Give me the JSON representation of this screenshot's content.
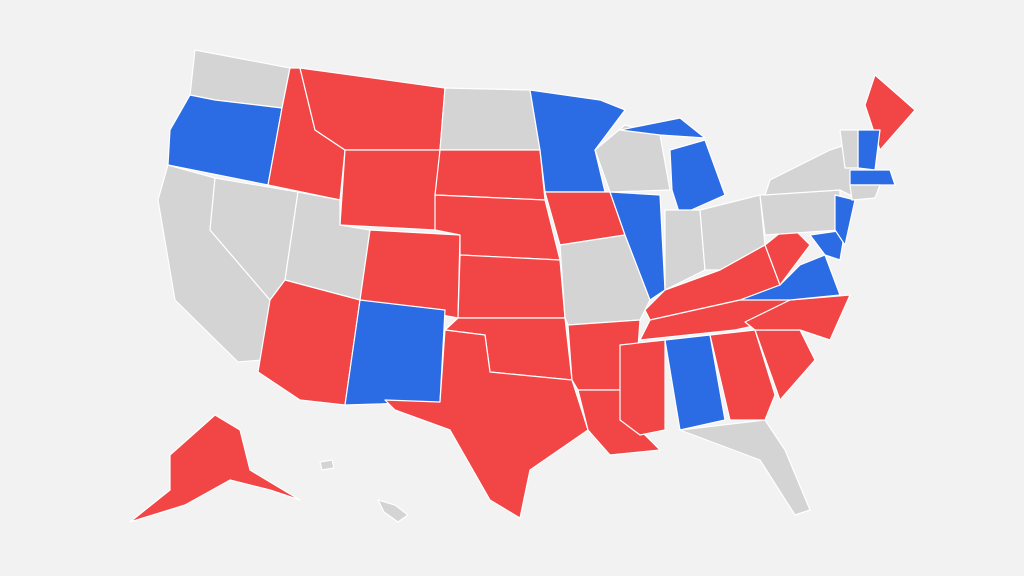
{
  "map": {
    "fills": [
      "#f24545",
      "#2b6be4",
      "#d4d4d4"
    ],
    "background": "#f2f2f2",
    "border": "#ffffff"
  }
}
